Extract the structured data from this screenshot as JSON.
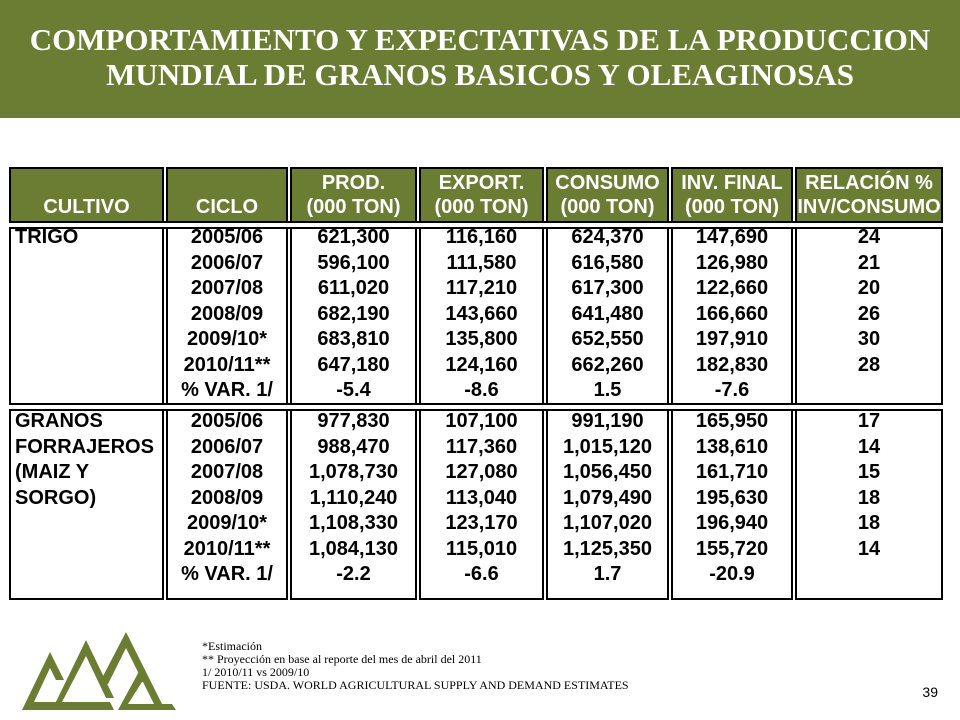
{
  "title": {
    "line1": "COMPORTAMIENTO Y EXPECTATIVAS DE LA PRODUCCION",
    "line2": "MUNDIAL DE GRANOS BASICOS Y OLEAGINOSAS"
  },
  "headers": {
    "cultivo": "CULTIVO",
    "ciclo": "CICLO",
    "prod": [
      "PROD.",
      "(000 TON)"
    ],
    "export": [
      "EXPORT.",
      "(000 TON)"
    ],
    "consumo": [
      "CONSUMO",
      "(000 TON)"
    ],
    "inv": [
      "INV. FINAL",
      "(000 TON)"
    ],
    "rel": [
      "RELACIÓN %",
      "INV/CONSUMO"
    ]
  },
  "sections": [
    {
      "crop_lines": [
        "TRIGO"
      ],
      "rows": [
        {
          "ciclo": "2005/06",
          "prod": "621,300",
          "export": "116,160",
          "consumo": "624,370",
          "inv": "147,690",
          "rel": "24"
        },
        {
          "ciclo": "2006/07",
          "prod": "596,100",
          "export": "111,580",
          "consumo": "616,580",
          "inv": "126,980",
          "rel": "21"
        },
        {
          "ciclo": "2007/08",
          "prod": "611,020",
          "export": "117,210",
          "consumo": "617,300",
          "inv": "122,660",
          "rel": "20"
        },
        {
          "ciclo": "2008/09",
          "prod": "682,190",
          "export": "143,660",
          "consumo": "641,480",
          "inv": "166,660",
          "rel": "26"
        },
        {
          "ciclo": "2009/10*",
          "prod": "683,810",
          "export": "135,800",
          "consumo": "652,550",
          "inv": "197,910",
          "rel": "30"
        },
        {
          "ciclo": "2010/11**",
          "prod": "647,180",
          "export": "124,160",
          "consumo": "662,260",
          "inv": "182,830",
          "rel": "28"
        },
        {
          "ciclo": "% VAR. 1/",
          "prod": "-5.4",
          "export": "-8.6",
          "consumo": "1.5",
          "inv": "-7.6",
          "rel": ""
        }
      ]
    },
    {
      "crop_lines": [
        "GRANOS",
        "FORRAJEROS",
        "(MAIZ Y",
        "SORGO)"
      ],
      "rows": [
        {
          "ciclo": "2005/06",
          "prod": "977,830",
          "export": "107,100",
          "consumo": "991,190",
          "inv": "165,950",
          "rel": "17"
        },
        {
          "ciclo": "2006/07",
          "prod": "988,470",
          "export": "117,360",
          "consumo": "1,015,120",
          "inv": "138,610",
          "rel": "14"
        },
        {
          "ciclo": "2007/08",
          "prod": "1,078,730",
          "export": "127,080",
          "consumo": "1,056,450",
          "inv": "161,710",
          "rel": "15"
        },
        {
          "ciclo": "2008/09",
          "prod": "1,110,240",
          "export": "113,040",
          "consumo": "1,079,490",
          "inv": "195,630",
          "rel": "18"
        },
        {
          "ciclo": "2009/10*",
          "prod": "1,108,330",
          "export": "123,170",
          "consumo": "1,107,020",
          "inv": "196,940",
          "rel": "18"
        },
        {
          "ciclo": "2010/11**",
          "prod": "1,084,130",
          "export": "115,010",
          "consumo": "1,125,350",
          "inv": "155,720",
          "rel": "14"
        },
        {
          "ciclo": "% VAR. 1/",
          "prod": "-2.2",
          "export": "-6.6",
          "consumo": "1.7",
          "inv": "-20.9",
          "rel": ""
        }
      ]
    }
  ],
  "footnotes": [
    "*Estimación",
    "** Proyección en base al reporte  del mes de  abril del 2011",
    "1/ 2010/11 vs 2009/10",
    "FUENTE: USDA. WORLD AGRICULTURAL SUPPLY AND DEMAND ESTIMATES"
  ],
  "page_number": "39",
  "colors": {
    "accent": "#6b7d33",
    "text": "#000000",
    "background": "#ffffff"
  }
}
